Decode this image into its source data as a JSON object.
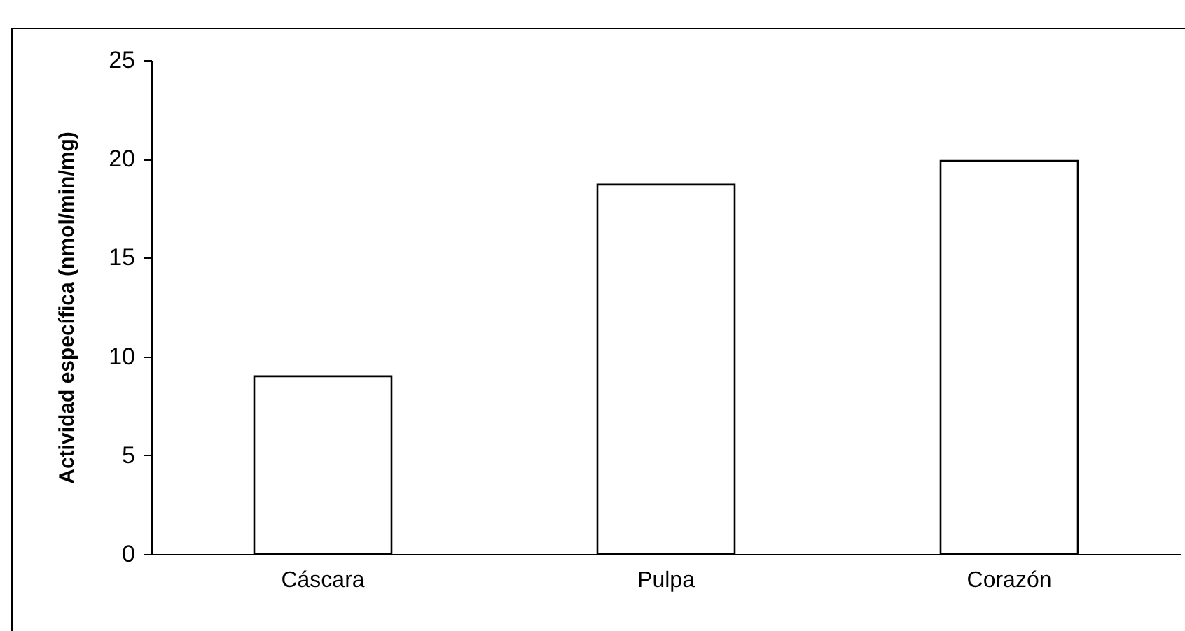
{
  "chart_data": {
    "type": "bar",
    "ylabel": "Actividad específica   (nmol/min/mg)",
    "categories": [
      "Cáscara",
      "Pulpa",
      "Corazón"
    ],
    "values": [
      9.0,
      18.7,
      19.9
    ],
    "color": "#ffffff",
    "ylim": [
      0,
      25
    ],
    "yticks": [
      0,
      5,
      10,
      15,
      20,
      25
    ],
    "grid": false
  }
}
